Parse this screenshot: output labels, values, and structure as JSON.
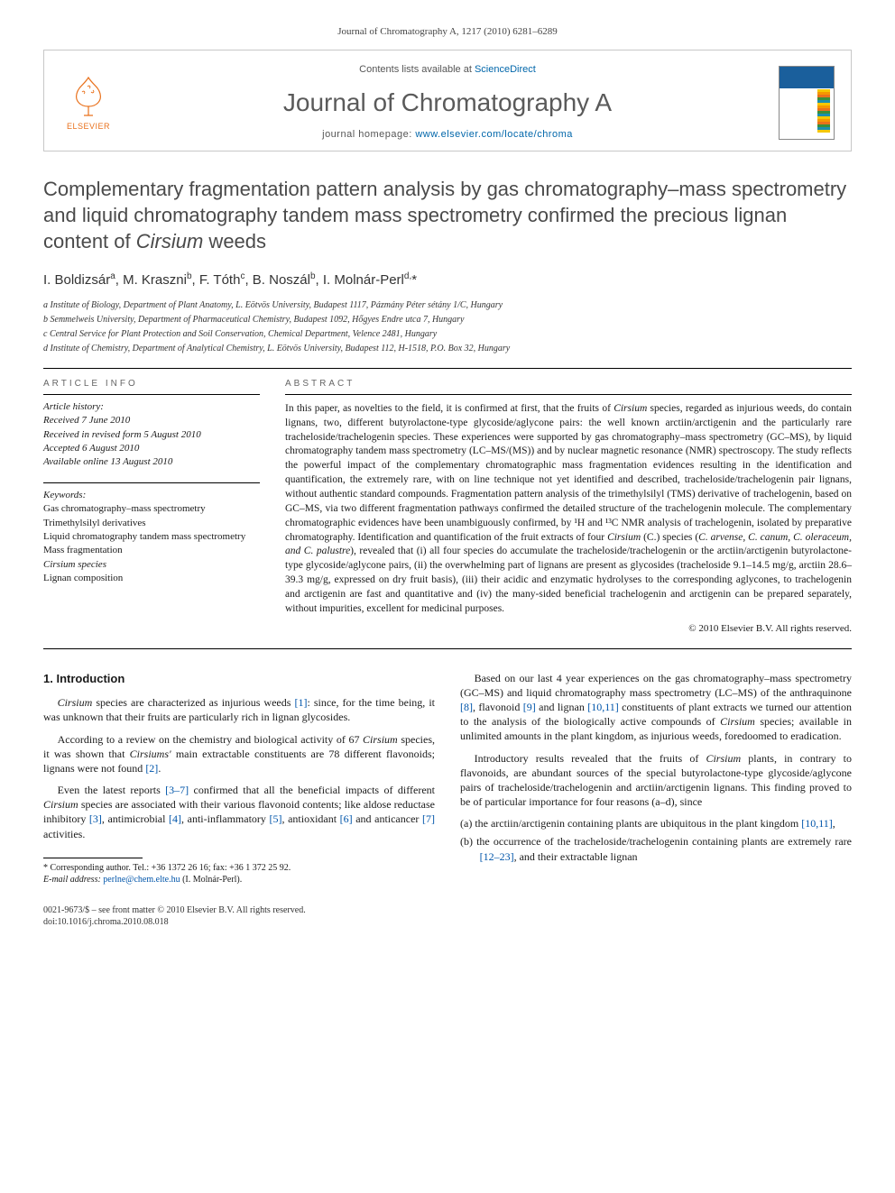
{
  "citation": "Journal of Chromatography A, 1217 (2010) 6281–6289",
  "header": {
    "contents_prefix": "Contents lists available at ",
    "contents_link": "ScienceDirect",
    "journal_name": "Journal of Chromatography A",
    "homepage_prefix": "journal homepage: ",
    "homepage_url": "www.elsevier.com/locate/chroma",
    "elsevier_label": "ELSEVIER"
  },
  "title_parts": [
    "Complementary fragmentation pattern analysis by gas chromatography–mass spectrometry and liquid chromatography tandem mass spectrometry confirmed the precious lignan content of ",
    "Cirsium",
    " weeds"
  ],
  "authors_html": "I. Boldizsár<sup>a</sup>, M. Kraszni<sup>b</sup>, F. Tóth<sup>c</sup>, B. Noszál<sup>b</sup>, I. Molnár-Perl<sup>d,</sup>*",
  "affiliations": [
    "a Institute of Biology, Department of Plant Anatomy, L. Eötvös University, Budapest 1117, Pázmány Péter sétány 1/C, Hungary",
    "b Semmelweis University, Department of Pharmaceutical Chemistry, Budapest 1092, Hőgyes Endre utca 7, Hungary",
    "c Central Service for Plant Protection and Soil Conservation, Chemical Department, Velence 2481, Hungary",
    "d Institute of Chemistry, Department of Analytical Chemistry, L. Eötvös University, Budapest 112, H-1518, P.O. Box 32, Hungary"
  ],
  "info": {
    "article_info_head": "ARTICLE INFO",
    "history_label": "Article history:",
    "history": [
      "Received 7 June 2010",
      "Received in revised form 5 August 2010",
      "Accepted 6 August 2010",
      "Available online 13 August 2010"
    ],
    "keywords_label": "Keywords:",
    "keywords": [
      "Gas chromatography–mass spectrometry",
      "Trimethylsilyl derivatives",
      "Liquid chromatography tandem mass spectrometry",
      "Mass fragmentation",
      "Cirsium species",
      "Lignan composition"
    ]
  },
  "abstract": {
    "head": "ABSTRACT",
    "text_pre": "In this paper, as novelties to the field, it is confirmed at first, that the fruits of ",
    "italic1": "Cirsium",
    "text_mid": " species, regarded as injurious weeds, do contain lignans, two, different butyrolactone-type glycoside/aglycone pairs: the well known arctiin/arctigenin and the particularly rare tracheloside/trachelogenin species. These experiences were supported by gas chromatography–mass spectrometry (GC–MS), by liquid chromatography tandem mass spectrometry (LC–MS/(MS)) and by nuclear magnetic resonance (NMR) spectroscopy. The study reflects the powerful impact of the complementary chromatographic mass fragmentation evidences resulting in the identification and quantification, the extremely rare, with on line technique not yet identified and described, tracheloside/trachelogenin pair lignans, without authentic standard compounds. Fragmentation pattern analysis of the trimethylsilyl (TMS) derivative of trachelogenin, based on GC–MS, via two different fragmentation pathways confirmed the detailed structure of the trachelogenin molecule. The complementary chromatographic evidences have been unambiguously confirmed, by ¹H and ¹³C NMR analysis of trachelogenin, isolated by preparative chromatography. Identification and quantification of the fruit extracts of four ",
    "italic2": "Cirsium",
    "text_mid2": " (C.) species (",
    "species_list": "C. arvense, C. canum, C. oleraceum, and C. palustre",
    "text_post": "), revealed that (i) all four species do accumulate the tracheloside/trachelogenin or the arctiin/arctigenin butyrolactone-type glycoside/aglycone pairs, (ii) the overwhelming part of lignans are present as glycosides (tracheloside 9.1–14.5 mg/g, arctiin 28.6–39.3 mg/g, expressed on dry fruit basis), (iii) their acidic and enzymatic hydrolyses to the corresponding aglycones, to trachelogenin and arctigenin are fast and quantitative and (iv) the many-sided beneficial trachelogenin and arctigenin can be prepared separately, without impurities, excellent for medicinal purposes.",
    "copyright": "© 2010 Elsevier B.V. All rights reserved."
  },
  "body": {
    "section_num": "1.",
    "section_title": "Introduction",
    "left": {
      "p1_pre": "Cirsium",
      "p1_post": " species are characterized as injurious weeds ",
      "p1_ref": "[1]",
      "p1_end": ": since, for the time being, it was unknown that their fruits are particularly rich in lignan glycosides.",
      "p2_pre": "According to a review on the chemistry and biological activity of 67 ",
      "p2_italic": "Cirsium",
      "p2_mid": " species, it was shown that ",
      "p2_italic2": "Cirsiums'",
      "p2_post": " main extractable constituents are 78 different flavonoids; lignans were not found ",
      "p2_ref": "[2]",
      "p2_end": ".",
      "p3_pre": "Even the latest reports ",
      "p3_ref": "[3–7]",
      "p3_mid": " confirmed that all the beneficial impacts of different ",
      "p3_italic": "Cirsium",
      "p3_mid2": " species are associated with their various flavonoid contents; like aldose reductase inhibitory ",
      "p3_ref2": "[3]",
      "p3_mid3": ", antimicrobial ",
      "p3_ref3": "[4]",
      "p3_mid4": ", anti-inflammatory ",
      "p3_ref4": "[5]",
      "p3_mid5": ", antioxidant ",
      "p3_ref5": "[6]",
      "p3_mid6": " and anticancer ",
      "p3_ref6": "[7]",
      "p3_end": " activities."
    },
    "right": {
      "p1_pre": "Based on our last 4 year experiences on the gas chromatography–mass spectrometry (GC–MS) and liquid chromatography mass spectrometry (LC–MS) of the anthraquinone ",
      "p1_ref1": "[8]",
      "p1_mid1": ", flavonoid ",
      "p1_ref2": "[9]",
      "p1_mid2": " and lignan ",
      "p1_ref3": "[10,11]",
      "p1_mid3": " constituents of plant extracts we turned our attention to the analysis of the biologically active compounds of ",
      "p1_italic": "Cirsium",
      "p1_end": " species; available in unlimited amounts in the plant kingdom, as injurious weeds, foredoomed to eradication.",
      "p2_pre": "Introductory results revealed that the fruits of ",
      "p2_italic": "Cirsium",
      "p2_end": " plants, in contrary to flavonoids, are abundant sources of the special butyrolactone-type glycoside/aglycone pairs of tracheloside/trachelogenin and arctiin/arctigenin lignans. This finding proved to be of particular importance for four reasons (a–d), since",
      "li_a_pre": "(a) the arctiin/arctigenin containing plants are ubiquitous in the plant kingdom ",
      "li_a_ref": "[10,11]",
      "li_a_end": ",",
      "li_b_pre": "(b) the occurrence of the tracheloside/trachelogenin containing plants are extremely rare ",
      "li_b_ref": "[12–23]",
      "li_b_end": ", and their extractable lignan"
    }
  },
  "footnote": {
    "corr_label": "* Corresponding author. Tel.: +36 1372 26 16; fax: +36 1 372 25 92.",
    "email_label": "E-mail address:",
    "email": "perlne@chem.elte.hu",
    "email_who": "(I. Molnár-Perl)."
  },
  "footer": {
    "left1": "0021-9673/$ – see front matter © 2010 Elsevier B.V. All rights reserved.",
    "left2": "doi:10.1016/j.chroma.2010.08.018"
  },
  "colors": {
    "link": "#0055aa",
    "elsevier_orange": "#e9711c",
    "title_grey": "#4a4a4a",
    "journal_grey": "#5a5a5a"
  }
}
